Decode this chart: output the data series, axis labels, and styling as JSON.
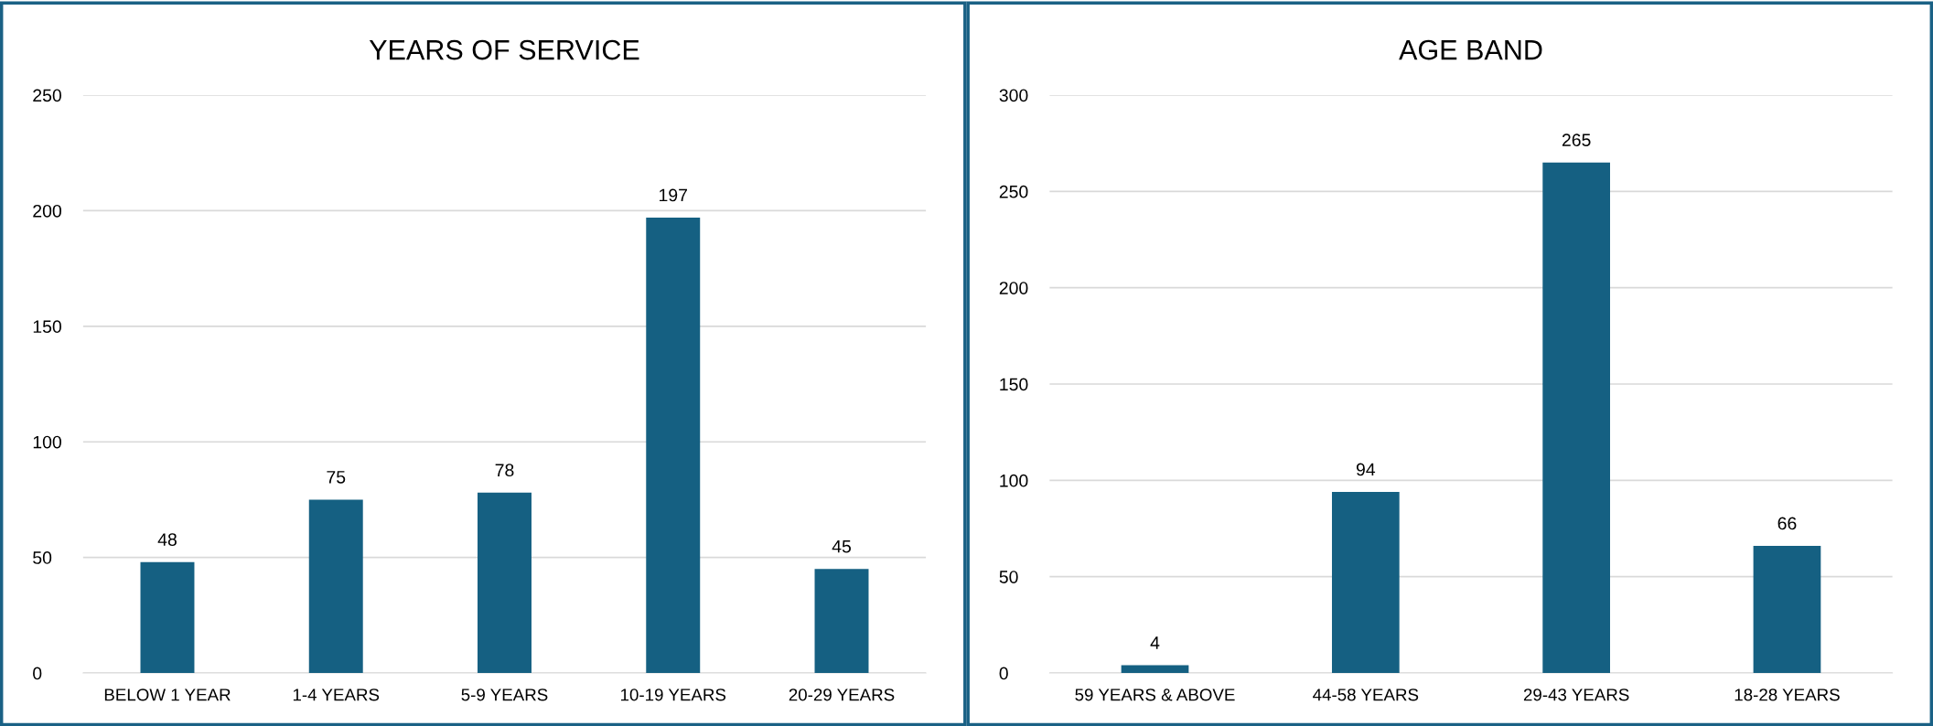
{
  "chart_data": [
    {
      "type": "bar",
      "title": "YEARS OF SERVICE",
      "categories": [
        "BELOW 1 YEAR",
        "1-4 YEARS",
        "5-9 YEARS",
        "10-19 YEARS",
        "20-29 YEARS"
      ],
      "values": [
        48,
        75,
        78,
        197,
        45
      ],
      "color": "#156082",
      "ylim": [
        0,
        250
      ],
      "yticks": [
        0,
        50,
        100,
        150,
        200,
        250
      ],
      "grid": "y",
      "data_labels": true
    },
    {
      "type": "bar",
      "title": "AGE BAND",
      "categories": [
        "59 YEARS & ABOVE",
        "44-58 YEARS",
        "29-43 YEARS",
        "18-28 YEARS"
      ],
      "values": [
        4,
        94,
        265,
        66
      ],
      "color": "#156082",
      "ylim": [
        0,
        300
      ],
      "yticks": [
        0,
        50,
        100,
        150,
        200,
        250,
        300
      ],
      "grid": "y",
      "data_labels": true
    }
  ]
}
